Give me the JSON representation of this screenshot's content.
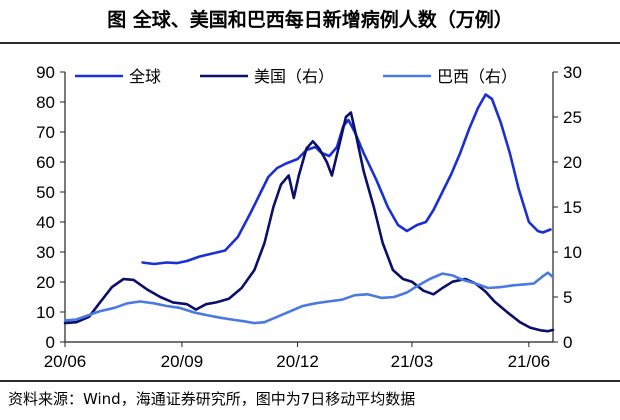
{
  "title": "图  全球、美国和巴西每日新增病例人数（万例）",
  "source": "资料来源：Wind，海通证券研究所，图中为7日移动平均数据",
  "colors": {
    "global": "#1a2fd4",
    "us": "#0a0f6a",
    "brazil": "#4a79e0"
  },
  "chart_data": {
    "type": "line",
    "title": "图  全球、美国和巴西每日新增病例人数（万例）",
    "xlabel": "",
    "ylabel_left": "",
    "ylabel_right": "",
    "x_tick_labels": [
      "20/06",
      "20/09",
      "20/12",
      "21/03",
      "21/06"
    ],
    "x_tick_dates": [
      "2020-06-01",
      "2020-09-01",
      "2020-12-01",
      "2021-03-01",
      "2021-06-01"
    ],
    "x_range": [
      "2020-06-01",
      "2021-06-20"
    ],
    "ylim_left": [
      0,
      90
    ],
    "ylim_right": [
      0,
      30
    ],
    "y_ticks_left": [
      0,
      10,
      20,
      30,
      40,
      50,
      60,
      70,
      80,
      90
    ],
    "y_ticks_right": [
      0,
      5,
      10,
      15,
      20,
      25,
      30
    ],
    "legend_position": "top",
    "grid": false,
    "series": [
      {
        "name": "全球",
        "axis": "left",
        "color": "#1a2fd4",
        "points": [
          [
            "2020-08-01",
            26.5
          ],
          [
            "2020-08-10",
            26.0
          ],
          [
            "2020-08-20",
            26.5
          ],
          [
            "2020-08-28",
            26.3
          ],
          [
            "2020-09-05",
            27.0
          ],
          [
            "2020-09-15",
            28.5
          ],
          [
            "2020-09-25",
            29.5
          ],
          [
            "2020-10-05",
            30.5
          ],
          [
            "2020-10-15",
            35.0
          ],
          [
            "2020-10-25",
            43.0
          ],
          [
            "2020-11-01",
            49.0
          ],
          [
            "2020-11-08",
            55.0
          ],
          [
            "2020-11-15",
            58.0
          ],
          [
            "2020-11-22",
            59.5
          ],
          [
            "2020-12-01",
            61.0
          ],
          [
            "2020-12-08",
            64.0
          ],
          [
            "2020-12-15",
            65.0
          ],
          [
            "2020-12-20",
            63.0
          ],
          [
            "2020-12-26",
            62.0
          ],
          [
            "2021-01-01",
            65.0
          ],
          [
            "2021-01-06",
            72.0
          ],
          [
            "2021-01-10",
            74.0
          ],
          [
            "2021-01-15",
            70.0
          ],
          [
            "2021-01-22",
            63.0
          ],
          [
            "2021-02-01",
            54.0
          ],
          [
            "2021-02-10",
            45.0
          ],
          [
            "2021-02-18",
            39.0
          ],
          [
            "2021-02-25",
            37.0
          ],
          [
            "2021-03-05",
            39.0
          ],
          [
            "2021-03-12",
            40.0
          ],
          [
            "2021-03-18",
            44.0
          ],
          [
            "2021-03-25",
            50.0
          ],
          [
            "2021-04-01",
            56.0
          ],
          [
            "2021-04-08",
            63.0
          ],
          [
            "2021-04-15",
            71.0
          ],
          [
            "2021-04-22",
            78.0
          ],
          [
            "2021-04-28",
            82.5
          ],
          [
            "2021-05-03",
            81.0
          ],
          [
            "2021-05-10",
            73.0
          ],
          [
            "2021-05-17",
            63.0
          ],
          [
            "2021-05-24",
            51.0
          ],
          [
            "2021-06-01",
            40.0
          ],
          [
            "2021-06-08",
            37.0
          ],
          [
            "2021-06-12",
            36.5
          ],
          [
            "2021-06-18",
            37.5
          ]
        ]
      },
      {
        "name": "美国（右）",
        "axis": "right",
        "color": "#0a0f6a",
        "points": [
          [
            "2020-06-01",
            2.1
          ],
          [
            "2020-06-10",
            2.2
          ],
          [
            "2020-06-20",
            2.8
          ],
          [
            "2020-06-28",
            4.3
          ],
          [
            "2020-07-08",
            6.1
          ],
          [
            "2020-07-17",
            7.0
          ],
          [
            "2020-07-25",
            6.9
          ],
          [
            "2020-08-05",
            5.8
          ],
          [
            "2020-08-15",
            5.0
          ],
          [
            "2020-08-25",
            4.4
          ],
          [
            "2020-09-05",
            4.2
          ],
          [
            "2020-09-12",
            3.6
          ],
          [
            "2020-09-20",
            4.2
          ],
          [
            "2020-09-28",
            4.4
          ],
          [
            "2020-10-08",
            4.8
          ],
          [
            "2020-10-18",
            6.0
          ],
          [
            "2020-10-28",
            8.0
          ],
          [
            "2020-11-05",
            11.0
          ],
          [
            "2020-11-12",
            15.0
          ],
          [
            "2020-11-18",
            17.5
          ],
          [
            "2020-11-24",
            18.5
          ],
          [
            "2020-11-28",
            16.0
          ],
          [
            "2020-12-02",
            18.5
          ],
          [
            "2020-12-08",
            21.5
          ],
          [
            "2020-12-13",
            22.3
          ],
          [
            "2020-12-18",
            21.5
          ],
          [
            "2020-12-24",
            20.0
          ],
          [
            "2020-12-28",
            18.5
          ],
          [
            "2021-01-03",
            22.0
          ],
          [
            "2021-01-08",
            25.0
          ],
          [
            "2021-01-12",
            25.5
          ],
          [
            "2021-01-16",
            23.0
          ],
          [
            "2021-01-22",
            19.0
          ],
          [
            "2021-01-30",
            15.0
          ],
          [
            "2021-02-06",
            11.0
          ],
          [
            "2021-02-14",
            8.0
          ],
          [
            "2021-02-22",
            7.0
          ],
          [
            "2021-03-01",
            6.7
          ],
          [
            "2021-03-10",
            5.7
          ],
          [
            "2021-03-18",
            5.3
          ],
          [
            "2021-03-25",
            6.0
          ],
          [
            "2021-04-02",
            6.7
          ],
          [
            "2021-04-12",
            7.0
          ],
          [
            "2021-04-20",
            6.5
          ],
          [
            "2021-04-28",
            5.6
          ],
          [
            "2021-05-05",
            4.5
          ],
          [
            "2021-05-15",
            3.3
          ],
          [
            "2021-05-25",
            2.2
          ],
          [
            "2021-06-02",
            1.6
          ],
          [
            "2021-06-10",
            1.3
          ],
          [
            "2021-06-16",
            1.2
          ],
          [
            "2021-06-20",
            1.35
          ]
        ]
      },
      {
        "name": "巴西（右）",
        "axis": "right",
        "color": "#4a79e0",
        "points": [
          [
            "2020-06-01",
            2.4
          ],
          [
            "2020-06-10",
            2.5
          ],
          [
            "2020-06-20",
            3.0
          ],
          [
            "2020-06-28",
            3.4
          ],
          [
            "2020-07-10",
            3.8
          ],
          [
            "2020-07-20",
            4.3
          ],
          [
            "2020-07-30",
            4.5
          ],
          [
            "2020-08-10",
            4.3
          ],
          [
            "2020-08-20",
            4.0
          ],
          [
            "2020-08-30",
            3.8
          ],
          [
            "2020-09-10",
            3.3
          ],
          [
            "2020-09-20",
            3.0
          ],
          [
            "2020-10-01",
            2.7
          ],
          [
            "2020-10-10",
            2.5
          ],
          [
            "2020-10-20",
            2.3
          ],
          [
            "2020-10-28",
            2.1
          ],
          [
            "2020-11-05",
            2.2
          ],
          [
            "2020-11-15",
            2.8
          ],
          [
            "2020-11-25",
            3.4
          ],
          [
            "2020-12-05",
            4.0
          ],
          [
            "2020-12-15",
            4.3
          ],
          [
            "2020-12-25",
            4.5
          ],
          [
            "2021-01-05",
            4.7
          ],
          [
            "2021-01-15",
            5.2
          ],
          [
            "2021-01-25",
            5.3
          ],
          [
            "2021-02-05",
            4.9
          ],
          [
            "2021-02-15",
            5.0
          ],
          [
            "2021-02-25",
            5.5
          ],
          [
            "2021-03-05",
            6.2
          ],
          [
            "2021-03-15",
            7.0
          ],
          [
            "2021-03-25",
            7.6
          ],
          [
            "2021-04-02",
            7.4
          ],
          [
            "2021-04-10",
            6.9
          ],
          [
            "2021-04-20",
            6.5
          ],
          [
            "2021-04-30",
            6.0
          ],
          [
            "2021-05-10",
            6.1
          ],
          [
            "2021-05-20",
            6.3
          ],
          [
            "2021-05-28",
            6.4
          ],
          [
            "2021-06-05",
            6.5
          ],
          [
            "2021-06-12",
            7.3
          ],
          [
            "2021-06-16",
            7.7
          ],
          [
            "2021-06-20",
            7.2
          ]
        ]
      }
    ]
  }
}
